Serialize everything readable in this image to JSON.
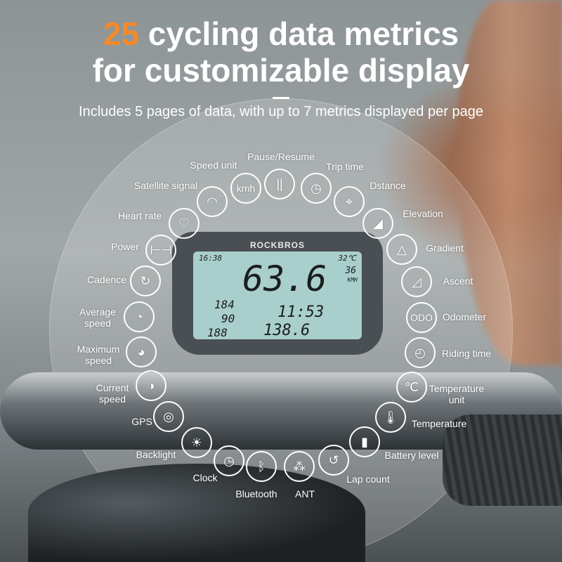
{
  "headline": {
    "number": "25",
    "line1_rest": " cycling data metrics",
    "line2": "for customizable display"
  },
  "subtitle": "Includes 5 pages of data, with up to 7 metrics displayed per page",
  "device": {
    "brand": "ROCKBROS",
    "clock": "16:38",
    "temp": "32℃",
    "speed": "63.6",
    "avg_speed": "36",
    "unit": "KMH",
    "heart": "184",
    "cadence": "90",
    "power": "188",
    "time": "11:53",
    "distance": "138.6"
  },
  "metrics": [
    {
      "label": "Pause/Resume",
      "icon": "pause-icon",
      "glyph": "||"
    },
    {
      "label": "Speed unit",
      "icon": "kmh-icon",
      "glyph": "kmh"
    },
    {
      "label": "Trip time",
      "icon": "stopwatch-icon",
      "glyph": "◷"
    },
    {
      "label": "Satellite signal",
      "icon": "wifi-signal-icon",
      "glyph": "◠"
    },
    {
      "label": "Dstance",
      "icon": "location-pin-icon",
      "glyph": "⌖"
    },
    {
      "label": "Heart rate",
      "icon": "heart-rate-icon",
      "glyph": "♡"
    },
    {
      "label": "Elevation",
      "icon": "elevation-icon",
      "glyph": "◢"
    },
    {
      "label": "Power",
      "icon": "dumbbell-icon",
      "glyph": "⊢⊣"
    },
    {
      "label": "Gradient",
      "icon": "triangle-icon",
      "glyph": "△"
    },
    {
      "label": "Cadence",
      "icon": "cadence-icon",
      "glyph": "↻"
    },
    {
      "label": "Ascent",
      "icon": "ascent-icon",
      "glyph": "◿"
    },
    {
      "label": "Average\nspeed",
      "icon": "average-speed-icon",
      "glyph": "◔"
    },
    {
      "label": "Odometer",
      "icon": "odometer-icon",
      "glyph": "ODO"
    },
    {
      "label": "Maximum\nspeed",
      "icon": "maximum-speed-icon",
      "glyph": "◕"
    },
    {
      "label": "Riding time",
      "icon": "clock-icon",
      "glyph": "◴"
    },
    {
      "label": "Current\nspeed",
      "icon": "current-speed-icon",
      "glyph": "◑"
    },
    {
      "label": "Temperature\nunit",
      "icon": "celsius-icon",
      "glyph": "℃"
    },
    {
      "label": "GPS",
      "icon": "gps-icon",
      "glyph": "◎"
    },
    {
      "label": "Temperature",
      "icon": "thermometer-icon",
      "glyph": "🌡"
    },
    {
      "label": "Backlight",
      "icon": "backlight-icon",
      "glyph": "☀"
    },
    {
      "label": "Battery level",
      "icon": "battery-icon",
      "glyph": "▮"
    },
    {
      "label": "Clock",
      "icon": "clock-icon",
      "glyph": "◷"
    },
    {
      "label": "Bluetooth",
      "icon": "bluetooth-icon",
      "glyph": "ᛒ"
    },
    {
      "label": "ANT",
      "icon": "ant-icon",
      "glyph": "⁂"
    },
    {
      "label": "Lap count",
      "icon": "lap-count-icon",
      "glyph": "↺"
    }
  ]
}
